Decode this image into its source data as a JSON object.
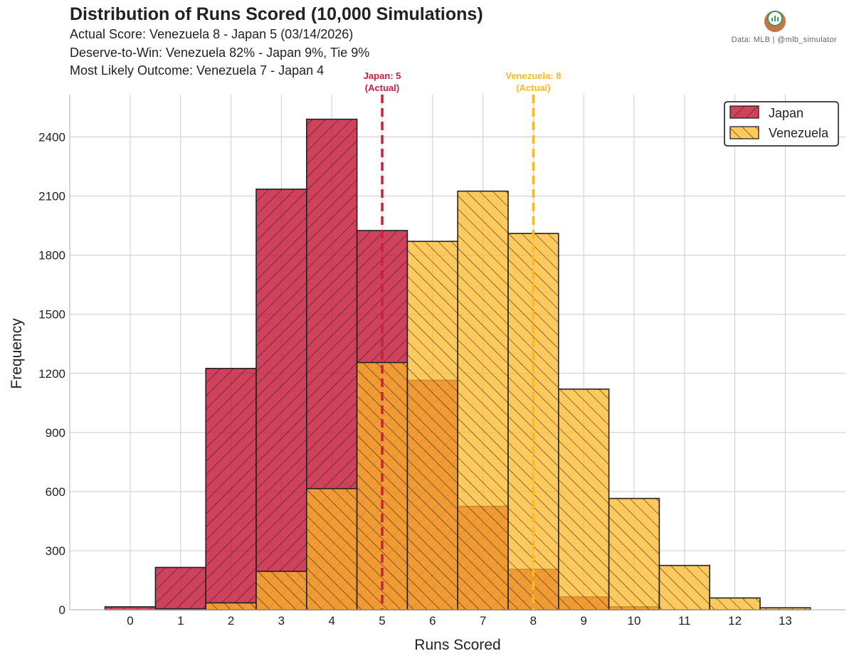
{
  "header": {
    "title": "Distribution of Runs Scored (10,000 Simulations)",
    "subtitle_1": "Actual Score: Venezuela 8 - Japan 5  (03/14/2026)",
    "subtitle_2": "Deserve-to-Win: Venezuela 82% - Japan 9%, Tie 9%",
    "subtitle_3": "Most Likely Outcome: Venezuela 7 - Japan 4",
    "credit": "Data: MLB  |  @mlb_simulator"
  },
  "colors": {
    "japan": "#c8203f",
    "venezuela": "#fdb827",
    "grid": "#cccccc",
    "bar_edge": "#222222"
  },
  "chart_data": {
    "type": "bar",
    "xlabel": "Runs Scored",
    "ylabel": "Frequency",
    "categories": [
      0,
      1,
      2,
      3,
      4,
      5,
      6,
      7,
      8,
      9,
      10,
      11,
      12,
      13
    ],
    "ylim": [
      0,
      2600
    ],
    "yticks": [
      0,
      300,
      600,
      900,
      1200,
      1500,
      1800,
      2100,
      2400
    ],
    "grid": true,
    "legend_position": "top-right",
    "series": [
      {
        "name": "Japan",
        "color": "#c8203f",
        "hatch": "forward",
        "values": [
          15,
          215,
          1225,
          2135,
          2490,
          1925,
          1165,
          525,
          205,
          65,
          15,
          0,
          0,
          0
        ]
      },
      {
        "name": "Venezuela",
        "color": "#fdb827",
        "hatch": "back",
        "values": [
          0,
          5,
          35,
          195,
          615,
          1255,
          1870,
          2125,
          1910,
          1120,
          565,
          225,
          60,
          10
        ]
      }
    ],
    "annotations": [
      {
        "series": "Japan",
        "x": 5,
        "line1": "Japan: 5",
        "line2": "(Actual)",
        "color": "#c8203f"
      },
      {
        "series": "Venezuela",
        "x": 8,
        "line1": "Venezuela: 8",
        "line2": "(Actual)",
        "color": "#fdb827"
      }
    ]
  }
}
